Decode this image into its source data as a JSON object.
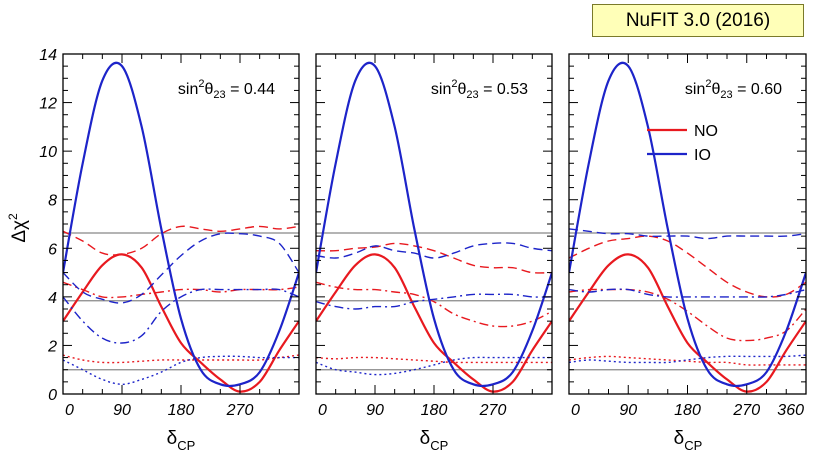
{
  "badge": {
    "label": "NuFIT 3.0 (2016)"
  },
  "axes": {
    "ylabel_main": "Δχ",
    "ylabel_sup": "2",
    "xlabel_main": "δ",
    "xlabel_sub": "CP",
    "xticks": [
      "0",
      "90",
      "180",
      "270",
      "360"
    ],
    "yticks": [
      "0",
      "2",
      "4",
      "6",
      "8",
      "10",
      "12",
      "14"
    ]
  },
  "colors": {
    "NO": "#e8191f",
    "IO": "#1d24c9",
    "ref_lines": "#888888",
    "frame": "#000000"
  },
  "legend": {
    "items": [
      {
        "name": "NO",
        "color": "#e8191f"
      },
      {
        "name": "IO",
        "color": "#1d24c9"
      }
    ]
  },
  "chart_data": {
    "type": "line",
    "xlabel": "δCP",
    "ylabel": "Δχ²",
    "xlim": [
      0,
      360
    ],
    "ylim": [
      0,
      14
    ],
    "reference_lines_y": [
      1,
      3.84,
      6.63
    ],
    "line_styles_note": "solid: combined; dashed, dash-dotted, dotted: additional variants per ordering",
    "panels": [
      {
        "annotation_main": "sin",
        "annotation_sup": "2",
        "annotation_theta": "θ",
        "annotation_sub": "23",
        "annotation_value": " = 0.44",
        "show_360_label": false,
        "series": [
          {
            "name": "NO",
            "style": "solid",
            "color": "#e8191f",
            "x": [
              0,
              30,
              60,
              90,
              120,
              150,
              180,
              210,
              240,
              270,
              300,
              330,
              360
            ],
            "y": [
              3.0,
              4.2,
              5.3,
              5.75,
              5.2,
              3.6,
              2.1,
              1.3,
              0.6,
              0.1,
              0.5,
              1.8,
              3.0
            ]
          },
          {
            "name": "NO",
            "style": "dashed",
            "color": "#e8191f",
            "x": [
              0,
              30,
              60,
              90,
              120,
              150,
              180,
              210,
              240,
              270,
              300,
              330,
              360
            ],
            "y": [
              6.7,
              6.3,
              5.8,
              5.75,
              6.0,
              6.6,
              6.9,
              6.8,
              6.7,
              6.8,
              6.9,
              6.8,
              6.9
            ]
          },
          {
            "name": "NO",
            "style": "dashdot",
            "color": "#e8191f",
            "x": [
              0,
              30,
              60,
              90,
              120,
              150,
              180,
              210,
              240,
              270,
              300,
              330,
              360
            ],
            "y": [
              4.6,
              4.3,
              4.0,
              4.0,
              4.1,
              4.2,
              4.3,
              4.3,
              4.2,
              4.3,
              4.3,
              4.3,
              4.4
            ]
          },
          {
            "name": "NO",
            "style": "dotted",
            "color": "#e8191f",
            "x": [
              0,
              30,
              60,
              90,
              120,
              150,
              180,
              210,
              240,
              270,
              300,
              330,
              360
            ],
            "y": [
              1.6,
              1.4,
              1.3,
              1.3,
              1.35,
              1.4,
              1.4,
              1.4,
              1.4,
              1.4,
              1.4,
              1.5,
              1.6
            ]
          },
          {
            "name": "IO",
            "style": "solid",
            "color": "#1d24c9",
            "x": [
              0,
              30,
              60,
              90,
              120,
              150,
              180,
              210,
              240,
              270,
              300,
              330,
              360
            ],
            "y": [
              5.0,
              9.5,
              12.9,
              13.5,
              11.0,
              6.8,
              3.1,
              1.0,
              0.4,
              0.4,
              0.9,
              2.6,
              5.0
            ]
          },
          {
            "name": "IO",
            "style": "dashed",
            "color": "#1d24c9",
            "x": [
              0,
              30,
              60,
              90,
              120,
              150,
              180,
              210,
              240,
              270,
              300,
              330,
              360
            ],
            "y": [
              5.0,
              4.2,
              3.9,
              3.75,
              4.1,
              4.9,
              5.7,
              6.3,
              6.6,
              6.6,
              6.5,
              6.2,
              5.0
            ]
          },
          {
            "name": "IO",
            "style": "dashdot",
            "color": "#1d24c9",
            "x": [
              0,
              30,
              60,
              90,
              120,
              150,
              180,
              210,
              240,
              270,
              300,
              330,
              360
            ],
            "y": [
              4.0,
              3.0,
              2.3,
              2.1,
              2.4,
              3.4,
              4.0,
              4.3,
              4.3,
              4.3,
              4.3,
              4.3,
              4.0
            ]
          },
          {
            "name": "IO",
            "style": "dotted",
            "color": "#1d24c9",
            "x": [
              0,
              30,
              60,
              90,
              120,
              150,
              180,
              210,
              240,
              270,
              300,
              330,
              360
            ],
            "y": [
              1.4,
              1.0,
              0.6,
              0.4,
              0.6,
              0.9,
              1.3,
              1.5,
              1.55,
              1.55,
              1.5,
              1.5,
              1.5
            ]
          }
        ]
      },
      {
        "annotation_main": "sin",
        "annotation_sup": "2",
        "annotation_theta": "θ",
        "annotation_sub": "23",
        "annotation_value": " = 0.53",
        "show_360_label": false,
        "series": [
          {
            "name": "NO",
            "style": "solid",
            "color": "#e8191f",
            "x": [
              0,
              30,
              60,
              90,
              120,
              150,
              180,
              210,
              240,
              270,
              300,
              330,
              360
            ],
            "y": [
              3.0,
              4.2,
              5.3,
              5.75,
              5.2,
              3.6,
              2.1,
              1.3,
              0.6,
              0.1,
              0.5,
              1.8,
              3.0
            ]
          },
          {
            "name": "NO",
            "style": "dashed",
            "color": "#e8191f",
            "x": [
              0,
              30,
              60,
              90,
              120,
              150,
              180,
              210,
              240,
              270,
              300,
              330,
              360
            ],
            "y": [
              5.9,
              5.9,
              6.0,
              6.05,
              6.2,
              6.1,
              5.9,
              5.6,
              5.3,
              5.2,
              5.2,
              5.0,
              5.0
            ]
          },
          {
            "name": "NO",
            "style": "dashdot",
            "color": "#e8191f",
            "x": [
              0,
              30,
              60,
              90,
              120,
              150,
              180,
              210,
              240,
              270,
              300,
              330,
              360
            ],
            "y": [
              4.6,
              4.4,
              4.3,
              4.3,
              4.2,
              4.1,
              3.8,
              3.3,
              3.0,
              2.8,
              2.8,
              3.0,
              3.4
            ]
          },
          {
            "name": "NO",
            "style": "dotted",
            "color": "#e8191f",
            "x": [
              0,
              30,
              60,
              90,
              120,
              150,
              180,
              210,
              240,
              270,
              300,
              330,
              360
            ],
            "y": [
              1.5,
              1.45,
              1.5,
              1.5,
              1.45,
              1.4,
              1.35,
              1.3,
              1.3,
              1.3,
              1.3,
              1.3,
              1.3
            ]
          },
          {
            "name": "IO",
            "style": "solid",
            "color": "#1d24c9",
            "x": [
              0,
              30,
              60,
              90,
              120,
              150,
              180,
              210,
              240,
              270,
              300,
              330,
              360
            ],
            "y": [
              5.0,
              9.5,
              12.9,
              13.5,
              11.0,
              6.8,
              3.1,
              1.0,
              0.4,
              0.4,
              0.9,
              2.6,
              5.0
            ]
          },
          {
            "name": "IO",
            "style": "dashed",
            "color": "#1d24c9",
            "x": [
              0,
              30,
              60,
              90,
              120,
              150,
              180,
              210,
              240,
              270,
              300,
              330,
              360
            ],
            "y": [
              5.7,
              5.6,
              5.8,
              6.1,
              5.9,
              5.8,
              5.6,
              5.8,
              6.1,
              6.2,
              6.2,
              6.0,
              5.9
            ]
          },
          {
            "name": "IO",
            "style": "dashdot",
            "color": "#1d24c9",
            "x": [
              0,
              30,
              60,
              90,
              120,
              150,
              180,
              210,
              240,
              270,
              300,
              330,
              360
            ],
            "y": [
              3.8,
              3.6,
              3.5,
              3.6,
              3.6,
              3.8,
              3.9,
              4.0,
              4.1,
              4.1,
              4.1,
              4.0,
              4.0
            ]
          },
          {
            "name": "IO",
            "style": "dotted",
            "color": "#1d24c9",
            "x": [
              0,
              30,
              60,
              90,
              120,
              150,
              180,
              210,
              240,
              270,
              300,
              330,
              360
            ],
            "y": [
              1.3,
              1.0,
              0.9,
              0.8,
              0.85,
              1.0,
              1.2,
              1.4,
              1.5,
              1.5,
              1.5,
              1.5,
              1.5
            ]
          }
        ]
      },
      {
        "annotation_main": "sin",
        "annotation_sup": "2",
        "annotation_theta": "θ",
        "annotation_sub": "23",
        "annotation_value": " = 0.60",
        "show_360_label": true,
        "series": [
          {
            "name": "NO",
            "style": "solid",
            "color": "#e8191f",
            "x": [
              0,
              30,
              60,
              90,
              120,
              150,
              180,
              210,
              240,
              270,
              300,
              330,
              360
            ],
            "y": [
              3.0,
              4.2,
              5.3,
              5.75,
              5.2,
              3.6,
              2.1,
              1.3,
              0.6,
              0.1,
              0.5,
              1.8,
              3.0
            ]
          },
          {
            "name": "NO",
            "style": "dashed",
            "color": "#e8191f",
            "x": [
              0,
              30,
              60,
              90,
              120,
              150,
              180,
              210,
              240,
              270,
              300,
              330,
              360
            ],
            "y": [
              5.6,
              6.0,
              6.3,
              6.4,
              6.5,
              6.3,
              5.8,
              5.2,
              4.6,
              4.2,
              4.0,
              4.1,
              4.6
            ]
          },
          {
            "name": "NO",
            "style": "dashdot",
            "color": "#e8191f",
            "x": [
              0,
              30,
              60,
              90,
              120,
              150,
              180,
              210,
              240,
              270,
              300,
              330,
              360
            ],
            "y": [
              4.2,
              4.3,
              4.3,
              4.3,
              4.2,
              3.9,
              3.4,
              2.8,
              2.3,
              2.2,
              2.3,
              2.6,
              3.5
            ]
          },
          {
            "name": "NO",
            "style": "dotted",
            "color": "#e8191f",
            "x": [
              0,
              30,
              60,
              90,
              120,
              150,
              180,
              210,
              240,
              270,
              300,
              330,
              360
            ],
            "y": [
              1.4,
              1.5,
              1.55,
              1.5,
              1.45,
              1.4,
              1.35,
              1.3,
              1.3,
              1.2,
              1.2,
              1.2,
              1.2
            ]
          },
          {
            "name": "IO",
            "style": "solid",
            "color": "#1d24c9",
            "x": [
              0,
              30,
              60,
              90,
              120,
              150,
              180,
              210,
              240,
              270,
              300,
              330,
              360
            ],
            "y": [
              5.0,
              9.5,
              12.9,
              13.5,
              11.0,
              6.8,
              3.1,
              1.0,
              0.4,
              0.4,
              0.9,
              2.6,
              5.0
            ]
          },
          {
            "name": "IO",
            "style": "dashed",
            "color": "#1d24c9",
            "x": [
              0,
              30,
              60,
              90,
              120,
              150,
              180,
              210,
              240,
              270,
              300,
              330,
              360
            ],
            "y": [
              6.8,
              6.7,
              6.6,
              6.6,
              6.5,
              6.5,
              6.5,
              6.4,
              6.5,
              6.5,
              6.5,
              6.5,
              6.6
            ]
          },
          {
            "name": "IO",
            "style": "dashdot",
            "color": "#1d24c9",
            "x": [
              0,
              30,
              60,
              90,
              120,
              150,
              180,
              210,
              240,
              270,
              300,
              330,
              360
            ],
            "y": [
              4.3,
              4.2,
              4.3,
              4.3,
              4.1,
              4.0,
              4.0,
              4.0,
              4.0,
              4.0,
              4.0,
              4.1,
              4.3
            ]
          },
          {
            "name": "IO",
            "style": "dotted",
            "color": "#1d24c9",
            "x": [
              0,
              30,
              60,
              90,
              120,
              150,
              180,
              210,
              240,
              270,
              300,
              330,
              360
            ],
            "y": [
              1.3,
              1.4,
              1.35,
              1.3,
              1.3,
              1.3,
              1.4,
              1.5,
              1.55,
              1.55,
              1.55,
              1.55,
              1.6
            ]
          }
        ]
      }
    ]
  }
}
